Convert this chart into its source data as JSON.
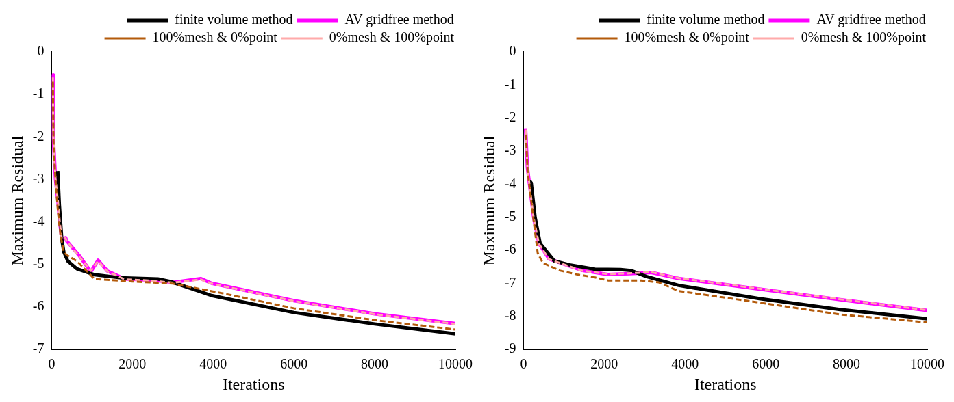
{
  "chart_data": [
    {
      "type": "line",
      "xlabel": "Iterations",
      "ylabel": "Maximum Residual",
      "xlim": [
        0,
        10000
      ],
      "ylim": [
        -7,
        0
      ],
      "xticks": [
        0,
        2000,
        4000,
        6000,
        8000,
        10000
      ],
      "yticks": [
        -7,
        -6,
        -5,
        -4,
        -3,
        -2,
        -1,
        0
      ],
      "grid": false,
      "legend": "top right",
      "marker": "none",
      "series": [
        {
          "name": "finite volume method",
          "color": "#000000",
          "line_style": "solid",
          "x": [
            150,
            190,
            250,
            300,
            400,
            625,
            1060,
            1690,
            2630,
            2940,
            3500,
            3960,
            6000,
            8000,
            10000
          ],
          "values": [
            -2.8,
            -3.6,
            -4.4,
            -4.7,
            -4.92,
            -5.1,
            -5.24,
            -5.31,
            -5.34,
            -5.4,
            -5.58,
            -5.73,
            -6.13,
            -6.4,
            -6.63
          ]
        },
        {
          "name": "AV gridfree method",
          "color": "#ff00ff",
          "line_style": "solid",
          "x": [
            30,
            40,
            95,
            155,
            200,
            250,
            345,
            375,
            690,
            970,
            1150,
            1375,
            1810,
            2500,
            3000,
            3690,
            3960,
            6000,
            8000,
            10000
          ],
          "values": [
            -0.54,
            -2.0,
            -3.0,
            -3.5,
            -4.0,
            -4.41,
            -4.37,
            -4.45,
            -4.8,
            -5.17,
            -4.9,
            -5.15,
            -5.34,
            -5.37,
            -5.42,
            -5.33,
            -5.44,
            -5.85,
            -6.16,
            -6.39
          ]
        },
        {
          "name": "100%mesh & 0%point",
          "color": "#b35a0a",
          "line_style": "dashed",
          "x": [
            30,
            45,
            100,
            160,
            220,
            300,
            375,
            625,
            1060,
            2000,
            3000,
            4140,
            6000,
            8000,
            10000
          ],
          "values": [
            -0.7,
            -2.1,
            -3.1,
            -3.8,
            -4.32,
            -4.7,
            -4.78,
            -4.92,
            -5.34,
            -5.4,
            -5.45,
            -5.66,
            -6.03,
            -6.31,
            -6.53
          ]
        },
        {
          "name": "0%mesh & 100%point",
          "color": "#ffaaaa",
          "line_style": "dashed",
          "x": [
            30,
            40,
            95,
            155,
            200,
            250,
            345,
            375,
            690,
            970,
            1150,
            1375,
            1810,
            2500,
            3000,
            3690,
            3960,
            6000,
            8000,
            10000
          ],
          "values": [
            -0.6,
            -2.0,
            -3.0,
            -3.5,
            -4.0,
            -4.4,
            -4.38,
            -4.46,
            -4.82,
            -5.15,
            -4.92,
            -5.16,
            -5.35,
            -5.38,
            -5.43,
            -5.35,
            -5.45,
            -5.86,
            -6.17,
            -6.4
          ]
        }
      ]
    },
    {
      "type": "line",
      "xlabel": "Iterations",
      "ylabel": "Maximum Residual",
      "xlim": [
        0,
        10000
      ],
      "ylim": [
        -9,
        0
      ],
      "xticks": [
        0,
        2000,
        4000,
        6000,
        8000,
        10000
      ],
      "yticks": [
        -9,
        -8,
        -7,
        -6,
        -5,
        -4,
        -3,
        -2,
        -1,
        0
      ],
      "grid": false,
      "legend": "top right",
      "marker": "none",
      "series": [
        {
          "name": "finite volume method",
          "color": "#000000",
          "line_style": "solid",
          "x": [
            150,
            190,
            285,
            410,
            760,
            1140,
            1770,
            2400,
            2660,
            3040,
            3840,
            5840,
            7840,
            10000
          ],
          "values": [
            -3.9,
            -3.96,
            -5.0,
            -5.79,
            -6.32,
            -6.44,
            -6.57,
            -6.58,
            -6.61,
            -6.79,
            -7.06,
            -7.46,
            -7.79,
            -8.07
          ]
        },
        {
          "name": "AV gridfree method",
          "color": "#ff00ff",
          "line_style": "solid",
          "x": [
            50,
            95,
            250,
            380,
            630,
            1460,
            2090,
            2720,
            3160,
            3840,
            5840,
            7840,
            10000
          ],
          "values": [
            -2.31,
            -3.49,
            -5.0,
            -5.79,
            -6.26,
            -6.61,
            -6.73,
            -6.7,
            -6.67,
            -6.85,
            -7.17,
            -7.49,
            -7.82
          ]
        },
        {
          "name": "100%mesh & 0%point",
          "color": "#b35a0a",
          "line_style": "dashed",
          "x": [
            60,
            100,
            250,
            350,
            475,
            890,
            1330,
            1770,
            2090,
            2530,
            2910,
            3350,
            3840,
            5840,
            7840,
            10000
          ],
          "values": [
            -2.5,
            -3.6,
            -5.1,
            -6.08,
            -6.38,
            -6.61,
            -6.73,
            -6.82,
            -6.91,
            -6.91,
            -6.91,
            -6.97,
            -7.23,
            -7.58,
            -7.94,
            -8.18
          ]
        },
        {
          "name": "0%mesh & 100%point",
          "color": "#ffaaaa",
          "line_style": "dashed",
          "x": [
            50,
            95,
            250,
            380,
            630,
            1460,
            2090,
            2720,
            3160,
            3840,
            5840,
            7840,
            10000
          ],
          "values": [
            -2.35,
            -3.5,
            -5.02,
            -5.8,
            -6.27,
            -6.62,
            -6.72,
            -6.69,
            -6.66,
            -6.84,
            -7.16,
            -7.48,
            -7.81
          ]
        }
      ]
    }
  ]
}
